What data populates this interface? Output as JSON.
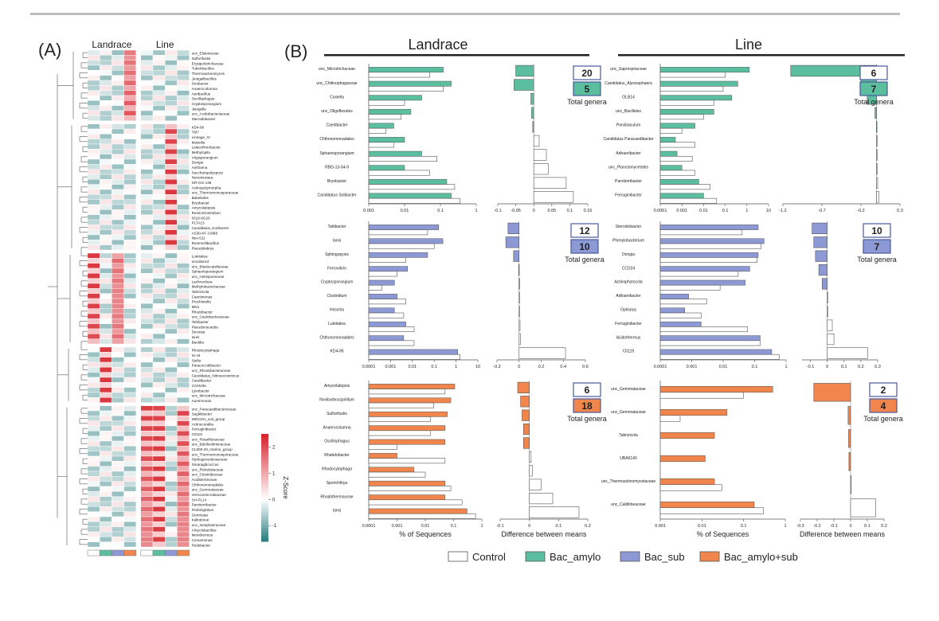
{
  "figure": {
    "panel_a_label": "(A)",
    "panel_b_label": "(B)",
    "group_landrace": "Landrace",
    "group_line": "Line",
    "total_genera_label": "Total genera",
    "pct_sequences_label": "% of Sequences",
    "diff_means_label": "Difference between means",
    "zscore_label": "Z-Score",
    "legend": [
      {
        "name": "Control",
        "color": "#ffffff"
      },
      {
        "name": "Bac_amylo",
        "color": "#5bbf9f"
      },
      {
        "name": "Bac_sub",
        "color": "#8c99d4"
      },
      {
        "name": "Bac_amylo+sub",
        "color": "#f0864e"
      }
    ]
  },
  "chart_data": [
    {
      "type": "heatmap",
      "panel": "(A)",
      "columns": [
        "Landrace",
        "Line"
      ],
      "colorbar": {
        "label": "Z-Score",
        "ticks": [
          2,
          1,
          0,
          -1
        ],
        "min_color": "#2e7f82",
        "mid_color": "#ffffff",
        "max_color": "#d7262e"
      },
      "column_colors": [
        "#ffffff",
        "#5bbf9f",
        "#8c99d4",
        "#f0864e",
        "#ffffff",
        "#5bbf9f",
        "#8c99d4",
        "#f0864e"
      ],
      "rows": [
        "unc_Elsteraceae",
        "Sulfurifustis",
        "Erysipelotrichaceae",
        "Tuberibacillus",
        "Thermoactinomyces",
        "Jeotgalibacillus",
        "Oxobacter",
        "Anaerocolumna",
        "Aeribacillus",
        "Oscillophagus",
        "Cryptosporangium",
        "Jiangella",
        "unc_Acidobacteriaceae",
        "Steroidobacter",
        "KD4-96",
        "TM7",
        "Lineage_IV",
        "Massilia",
        "Lalsochlorobacter",
        "Methylopila",
        "Virgisporangium",
        "Dongia",
        "Anthoena",
        "Saccharopolyspora",
        "Nonomuraea",
        "GR-GG-136",
        "Actinopolymorpha",
        "unc_Thermomonosporaceae",
        "Babeliales",
        "Bryobacter",
        "Amycolatopsis",
        "Ruminiclostridium",
        "0319-6G20",
        "PLTA13",
        "Candidatus_Koribacter",
        "AS30-KF-CM88",
        "Nev-511",
        "Rummeliibacillus",
        "Pseudolabrys",
        "Luteitalea",
        "uncultured",
        "unc_Blastocatellaceae",
        "Sphaerisporangium",
        "unc_Holosporaceae",
        "Lachnoclava",
        "Methylobacteriaceae",
        "Tabrizicola",
        "Caenimonas",
        "Prochlorella",
        "MN1",
        "Rhodobacter",
        "unc_Caulobacteraceae",
        "Tahibacter",
        "Pseudonocardia",
        "Devosia",
        "Ianis",
        "Bauldia",
        "Rhodocytophaga",
        "IS-44",
        "Stella",
        "Paracoccidibacter",
        "unc_Rhodobacteraceae",
        "Candidatus_Nitrosocosmicus",
        "Caedibacter",
        "CCM19a",
        "Lysobacter",
        "unc_Microtrichaceae",
        "Aureimonas",
        "unc_Paracaedibacteraceae",
        "Sagittibacter",
        "WD2101_soil_group",
        "Actinocorallia",
        "Ferruginibacter",
        "C0119",
        "unc_Roseiflexaceae",
        "unc_Bdellovibrionaceae",
        "CL500-29_marine_group",
        "unc_Thermomonosporaceae",
        "Hydrogenedensaceae",
        "Smaragdicoccus",
        "unc_Rickettsiaceae",
        "unc_Clostridiaceae",
        "Aciditerrimonas",
        "Chthonomonadales",
        "unc_Gemmataceae",
        "Verrucomicrobiaceae",
        "SH-PL14",
        "Parviterribacter",
        "Fimbriiglobus",
        "Gemmata",
        "Kallotenue",
        "unc_Isosphaeraceae",
        "Alicyclobacillus",
        "Meiothermus",
        "Comamonas",
        "Pedobacter"
      ]
    },
    {
      "type": "bar",
      "panel": "(B) Landrace / Bac_amylo",
      "group": "Landrace",
      "treatment": "Bac_amylo",
      "categories": [
        "unc_Microtrichaceae",
        "unc_Chitinophagaceae",
        "Coxiella",
        "unc_Oligoflexales",
        "Caedibacter",
        "Chthonomonadales",
        "Sphaerisporangium",
        "RBG-13-54-9",
        "Bryobacter",
        "Candidatus Solibacter"
      ],
      "series": [
        {
          "name": "Control",
          "values": [
            0.05,
            0.12,
            0.01,
            0.008,
            0.003,
            0.005,
            0.08,
            0.05,
            0.25,
            0.35
          ]
        },
        {
          "name": "Bac_amylo",
          "values": [
            0.12,
            0.2,
            0.03,
            0.015,
            0.005,
            0.01,
            0.03,
            0.01,
            0.15,
            0.2
          ]
        }
      ],
      "xlog": true,
      "xticks": [
        "0.001",
        "0.01",
        "0.1",
        "1"
      ],
      "diff_values": [
        -0.05,
        -0.055,
        -0.008,
        -0.006,
        -0.003,
        0.015,
        0.035,
        0.04,
        0.09,
        0.11
      ],
      "diff_ticks": [
        "-0.1",
        "-0.05",
        "0",
        "0.05",
        "0.1",
        "0.15"
      ],
      "diff_range": [
        -0.1,
        0.15
      ],
      "counts": {
        "control": "20",
        "treatment": "5"
      }
    },
    {
      "type": "bar",
      "panel": "(B) Line / Bac_amylo",
      "group": "Line",
      "treatment": "Bac_amylo",
      "categories": [
        "unc_Saprospiraceae",
        "Candidatus_Alysiosphaera",
        "OLB14",
        "unc_Bacillales",
        "Parvibaculum",
        "Candidatus Paracaedibacter",
        "Adhaeribacter",
        "unc_Planctomycetales",
        "Parviterribacter",
        "Ferruginibacter"
      ],
      "series": [
        {
          "name": "Control",
          "values": [
            0.1,
            0.08,
            0.03,
            0.01,
            0.001,
            0.004,
            0.003,
            0.004,
            0.02,
            0.04
          ]
        },
        {
          "name": "Bac_amylo",
          "values": [
            1.3,
            0.38,
            0.2,
            0.03,
            0.004,
            0.0005,
            0.0006,
            0.001,
            0.006,
            0.01
          ]
        }
      ],
      "xlog": true,
      "xticks": [
        "0.0001",
        "0.001",
        "0.01",
        "0.1",
        "1",
        "10"
      ],
      "diff_values": [
        -1.1,
        -0.2,
        -0.12,
        -0.02,
        -0.003,
        0.002,
        0.002,
        0.003,
        0.014,
        0.03
      ],
      "diff_ticks": [
        "-1.2",
        "-0.7",
        "-0.2",
        "0.3"
      ],
      "diff_range": [
        -1.2,
        0.3
      ],
      "counts": {
        "control": "6",
        "treatment": "7"
      }
    },
    {
      "type": "bar",
      "panel": "(B) Landrace / Bac_sub",
      "group": "Landrace",
      "treatment": "Bac_sub",
      "categories": [
        "Tahibacter",
        "Ianis",
        "Sphingopyxis",
        "Ferrovibrio",
        "Cryptosporangium",
        "Clostridium",
        "Hirschia",
        "Luteitalea",
        "Chthonomonadales",
        "KD4-96"
      ],
      "series": [
        {
          "name": "Control",
          "values": [
            0.05,
            0.1,
            0.005,
            0.002,
            0.0004,
            0.005,
            0.004,
            0.012,
            0.012,
            1.5
          ]
        },
        {
          "name": "Bac_sub",
          "values": [
            0.16,
            0.25,
            0.05,
            0.006,
            0.0015,
            0.002,
            0.0015,
            0.005,
            0.004,
            1.2
          ]
        }
      ],
      "xlog": true,
      "xticks": [
        "0.0001",
        "0.001",
        "0.01",
        "0.1",
        "1",
        "10"
      ],
      "diff_values": [
        -0.1,
        -0.12,
        -0.05,
        -0.004,
        -0.001,
        0.003,
        0.004,
        0.009,
        0.012,
        0.42
      ],
      "diff_ticks": [
        "-0.2",
        "0",
        "0.2",
        "0.4",
        "0.6"
      ],
      "diff_range": [
        -0.2,
        0.6
      ],
      "counts": {
        "control": "12",
        "treatment": "10"
      }
    },
    {
      "type": "bar",
      "panel": "(B) Line / Bac_sub",
      "group": "Line",
      "treatment": "Bac_sub",
      "categories": [
        "Steroidobacter",
        "Phenylobacterium",
        "Dongia",
        "CCD24",
        "Actinophytocola",
        "Adhaeribacter",
        "Ophiutus",
        "Ferruginibacter",
        "Acidothermus",
        "C0119"
      ],
      "series": [
        {
          "name": "Control",
          "values": [
            0.04,
            0.16,
            0.12,
            0.03,
            0.008,
            0.003,
            0.002,
            0.06,
            0.15,
            0.6
          ]
        },
        {
          "name": "Bac_sub",
          "values": [
            0.13,
            0.2,
            0.13,
            0.07,
            0.05,
            0.0008,
            0.0006,
            0.002,
            0.15,
            0.35
          ]
        }
      ],
      "xlog": true,
      "xticks": [
        "0.0001",
        "0.001",
        "0.01",
        "0.1",
        "1"
      ],
      "diff_values": [
        -0.09,
        -0.08,
        -0.07,
        -0.05,
        -0.03,
        0.002,
        0.003,
        0.03,
        0.04,
        0.24
      ],
      "diff_ticks": [
        "-0.1",
        "0",
        "0.1",
        "0.2",
        "0.3"
      ],
      "diff_range": [
        -0.15,
        0.3
      ],
      "counts": {
        "control": "10",
        "treatment": "7"
      }
    },
    {
      "type": "bar",
      "panel": "(B) Landrace / Bac_amylo+sub",
      "group": "Landrace",
      "treatment": "Bac_amylo+sub",
      "categories": [
        "Amycolatopsis",
        "Novibarbosspirillum",
        "Sulfurifustis",
        "Anaerocolumna",
        "Oscillophagus",
        "Rhabdobacter",
        "Rhodocytophaga",
        "Sporichthya",
        "Rhodothermaceae",
        "Ianis"
      ],
      "series": [
        {
          "name": "Control",
          "values": [
            0.05,
            0.02,
            0.015,
            0.015,
            0.001,
            0.05,
            0.01,
            0.08,
            0.2,
            0.6
          ]
        },
        {
          "name": "Bac_amylo+sub",
          "values": [
            0.11,
            0.08,
            0.06,
            0.05,
            0.05,
            0.001,
            0.004,
            0.05,
            0.05,
            0.3
          ]
        }
      ],
      "xlog": true,
      "xticks": [
        "0.0001",
        "0.001",
        "0.01",
        "0.1",
        "1"
      ],
      "diff_values": [
        -0.04,
        -0.03,
        -0.025,
        -0.02,
        -0.02,
        0.006,
        0.01,
        0.04,
        0.08,
        0.17
      ],
      "diff_ticks": [
        "-0.1",
        "0",
        "0.1",
        "0.2"
      ],
      "diff_range": [
        -0.1,
        0.2
      ],
      "counts": {
        "control": "6",
        "treatment": "18"
      }
    },
    {
      "type": "bar",
      "panel": "(B) Line / Bac_amylo+sub",
      "group": "Line",
      "treatment": "Bac_amylo+sub",
      "categories": [
        "unc_Gemmataceae",
        "unc_Gemmataceae",
        "Tabrizicola",
        "UBA6140",
        "unc_Thermoactinomycetaceae",
        "unc_Caldilineaceae"
      ],
      "series": [
        {
          "name": "Control",
          "values": [
            0.1,
            0.003,
            0.001,
            0.001,
            0.03,
            0.3
          ]
        },
        {
          "name": "Bac_amylo+sub",
          "values": [
            0.5,
            0.04,
            0.02,
            0.012,
            0.02,
            0.18
          ]
        }
      ],
      "xlog": true,
      "xticks": [
        "0.001",
        "0.01",
        "0.1",
        "1"
      ],
      "diff_values": [
        -0.22,
        -0.015,
        -0.012,
        -0.01,
        0.004,
        0.15
      ],
      "diff_ticks": [
        "-0.3",
        "-0.2",
        "-0.1",
        "0",
        "0.1",
        "0.2"
      ],
      "diff_range": [
        -0.3,
        0.2
      ],
      "counts": {
        "control": "2",
        "treatment": "4"
      }
    }
  ]
}
